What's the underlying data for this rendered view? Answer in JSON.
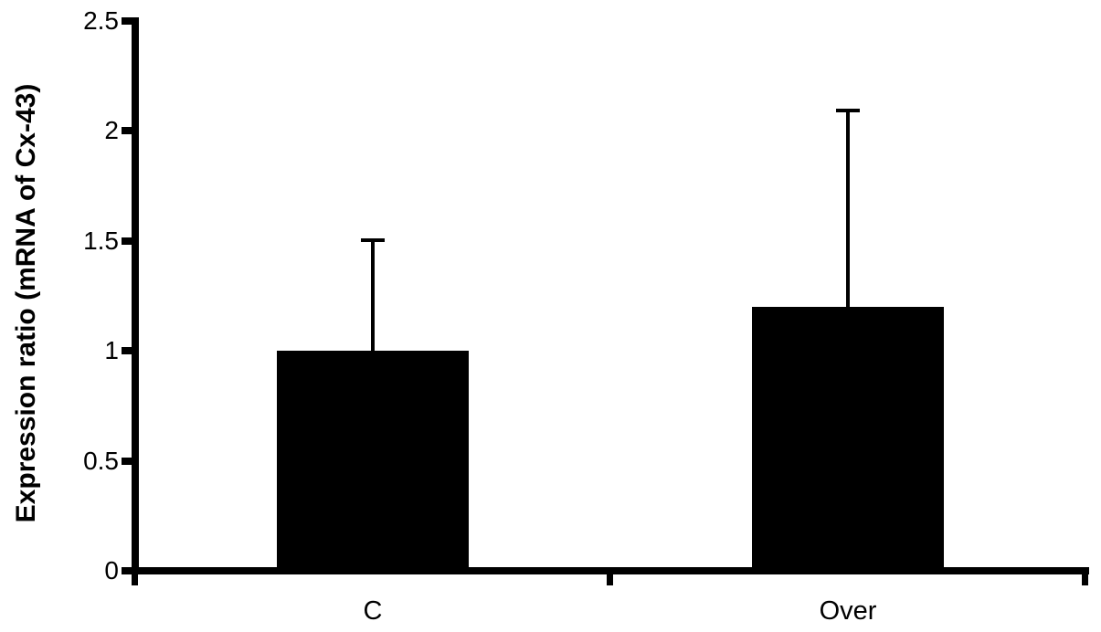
{
  "chart_data": {
    "type": "bar",
    "title": "",
    "xlabel": "",
    "ylabel": "Expression ratio (mRNA of Cx-43)",
    "categories": [
      "C",
      "Over"
    ],
    "series": [
      {
        "name": "Expression ratio (mRNA of Cx-43)",
        "values": [
          1.0,
          1.2
        ],
        "error_upper": [
          0.5,
          0.89
        ]
      }
    ],
    "yticks": [
      0,
      0.5,
      1,
      1.5,
      2,
      2.5
    ],
    "ytick_labels": [
      "0",
      "0.5",
      "1",
      "1.5",
      "2",
      "2.5"
    ],
    "ylim": [
      0,
      2.5
    ],
    "bar_color": "#000000",
    "axis_color": "#000000",
    "background": "#ffffff",
    "grid": false,
    "legend": false,
    "error_bar_style": "upper only, capped"
  }
}
